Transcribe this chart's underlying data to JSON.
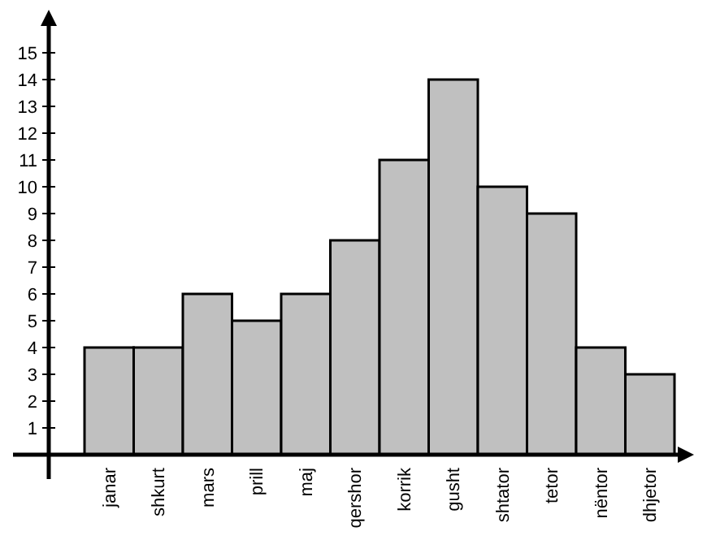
{
  "chart_data": {
    "type": "bar",
    "categories": [
      "janar",
      "shkurt",
      "mars",
      "prill",
      "maj",
      "qershor",
      "korrik",
      "gusht",
      "shtator",
      "tetor",
      "nëntor",
      "dhjetor"
    ],
    "values": [
      4,
      4,
      6,
      5,
      6,
      8,
      11,
      14,
      10,
      9,
      4,
      3
    ],
    "color": "#c0c0c0",
    "ylim": [
      0,
      16
    ],
    "yticks": [
      1,
      2,
      3,
      4,
      5,
      6,
      7,
      8,
      9,
      10,
      11,
      12,
      13,
      14,
      15
    ],
    "grid": false
  }
}
